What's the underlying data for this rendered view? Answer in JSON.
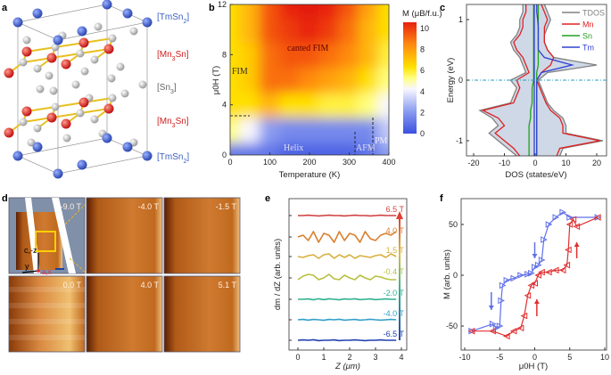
{
  "panel_labels": {
    "a": "a",
    "b": "b",
    "c": "c",
    "d": "d",
    "e": "e",
    "f": "f"
  },
  "panel_a": {
    "layer_labels": [
      {
        "open": "[",
        "elem": "TmSn",
        "sub": "2",
        "close": "]",
        "color": "#3a5fc0"
      },
      {
        "open": "[",
        "elem": "Mn",
        "sub": "3",
        "rest": "Sn",
        "close": "]",
        "color": "#d02020"
      },
      {
        "open": "[",
        "elem": "Sn",
        "sub": "3",
        "close": "]",
        "color": "#666666"
      },
      {
        "open": "[",
        "elem": "Mn",
        "sub": "3",
        "rest": "Sn",
        "close": "]",
        "color": "#d02020"
      },
      {
        "open": "[",
        "elem": "TmSn",
        "sub": "2",
        "close": "]",
        "color": "#3a5fc0"
      }
    ],
    "atom_colors": {
      "Tm": "#3a5fc0",
      "Mn": "#d42020",
      "Sn": "#b8b8b8",
      "bond": "#e8c020"
    }
  },
  "panel_d": {
    "frames": [
      "-9.0 T",
      "-4.0 T",
      "-1.5 T",
      "0.0 T",
      "4.0 T",
      "5.1 T"
    ],
    "axes": {
      "cz": "c,-z",
      "y": "y",
      "ax": "a,x"
    }
  },
  "chart_data": [
    {
      "id": "b",
      "type": "heatmap",
      "xlabel": "Temperature (K)",
      "ylabel": "μ0H (T)",
      "xlim": [
        0,
        400
      ],
      "ylim": [
        0,
        12
      ],
      "xticks": [
        "0",
        "100",
        "200",
        "300",
        "400"
      ],
      "yticks": [
        "0",
        "4",
        "8",
        "12"
      ],
      "colorbar": {
        "label": "M (μB/f.u.)",
        "range": [
          0,
          10
        ],
        "ticks": [
          "0",
          "2",
          "4",
          "6",
          "8",
          "10"
        ]
      },
      "temperatures": [
        0,
        50,
        100,
        150,
        200,
        250,
        300,
        350,
        400
      ],
      "fields": [
        0,
        2,
        4,
        6,
        8,
        10,
        12
      ],
      "values": [
        [
          1,
          1,
          1,
          0.5,
          0.5,
          0.5,
          0.5,
          1,
          2
        ],
        [
          5,
          4,
          2,
          1.5,
          1.5,
          1.5,
          1.5,
          1.5,
          3
        ],
        [
          6,
          6,
          7,
          6,
          6,
          5.5,
          5.5,
          5,
          4
        ],
        [
          6,
          6.5,
          8.5,
          8.5,
          8,
          7.5,
          7,
          6,
          5
        ],
        [
          6,
          6.5,
          8.5,
          9,
          9,
          8.5,
          8,
          7,
          5.5
        ],
        [
          6,
          7,
          9,
          9.5,
          10,
          9.5,
          8.5,
          7,
          6
        ],
        [
          6,
          7,
          9,
          10,
          10.5,
          10,
          9,
          7.5,
          6
        ]
      ],
      "annotations": [
        "canted FIM",
        "FIM",
        "Helix",
        "AFM",
        "PM"
      ]
    },
    {
      "id": "c",
      "type": "line",
      "xlabel": "DOS (states/eV)",
      "ylabel": "Energy (eV)",
      "xlim": [
        -23,
        23
      ],
      "ylim": [
        -1.25,
        1.25
      ],
      "xticks": [
        "-20",
        "-10",
        "0",
        "10",
        "20"
      ],
      "yticks": [
        "-1",
        "0",
        "1"
      ],
      "legend": "top-right",
      "energy": [
        1.25,
        1.125,
        1,
        0.875,
        0.75,
        0.625,
        0.5,
        0.375,
        0.25,
        0.125,
        0,
        -0.125,
        -0.25,
        -0.375,
        -0.5,
        -0.625,
        -0.75,
        -0.875,
        -1,
        -1.125,
        -1.25
      ],
      "series": [
        {
          "name": "TDOS",
          "color": "#808080",
          "up": [
            3,
            4,
            5,
            4,
            3,
            3,
            4,
            6,
            20,
            4,
            1,
            2,
            3,
            4,
            6,
            9,
            10,
            10,
            22,
            9,
            8
          ],
          "down": [
            -4,
            -4,
            -5,
            -5,
            -6,
            -8,
            -7,
            -5,
            -4,
            -3,
            -8,
            -6,
            -7,
            -8,
            -18,
            -14,
            -12,
            -15,
            -12,
            -9,
            -6
          ]
        },
        {
          "name": "Mn",
          "color": "#e02020",
          "up": [
            2,
            3,
            4,
            3,
            3,
            3,
            4,
            6,
            5,
            2,
            0.5,
            1.5,
            2.5,
            3.5,
            5,
            8,
            9,
            9,
            21,
            8,
            7
          ],
          "down": [
            -3,
            -3,
            -4,
            -4,
            -5,
            -7,
            -6,
            -4,
            -3,
            -2,
            -6,
            -5,
            -6,
            -7,
            -17,
            -12,
            -10,
            -13,
            -10,
            -7,
            -5
          ]
        },
        {
          "name": "Sn",
          "color": "#20a020",
          "up": [
            1,
            1,
            1,
            1,
            1,
            1,
            1,
            1,
            1,
            0.5,
            0.5,
            0.5,
            0.5,
            0.5,
            0.5,
            0.5,
            0.5,
            0.5,
            0.5,
            0.5,
            0.5
          ],
          "down": [
            -0.5,
            -0.5,
            -0.5,
            -0.5,
            -0.5,
            -0.5,
            -0.5,
            -0.5,
            -0.5,
            -0.5,
            -0.5,
            -1,
            -1,
            -1,
            -1.5,
            -1.5,
            -2,
            -2,
            -2,
            -2,
            -2
          ]
        },
        {
          "name": "Tm",
          "color": "#3040d0",
          "up": [
            0.5,
            0.5,
            0.8,
            1,
            1,
            1,
            1,
            3,
            12,
            2,
            0.5,
            0.5,
            0.5,
            0.5,
            0.5,
            0.5,
            0.5,
            0.5,
            0.5,
            0.5,
            0.5
          ],
          "down": [
            -0.3,
            -0.3,
            -0.3,
            -0.3,
            -0.3,
            -0.3,
            -0.3,
            -0.3,
            -0.3,
            -0.3,
            -0.3,
            -0.3,
            -0.3,
            -0.3,
            -0.3,
            -0.3,
            -0.3,
            -0.3,
            -0.3,
            -0.3,
            -0.3
          ]
        }
      ],
      "fermi_level": 0
    },
    {
      "id": "e",
      "type": "line",
      "xlabel": "Z (μm)",
      "ylabel": "dm / dZ (arb. units)",
      "xlim": [
        -0.3,
        4.3
      ],
      "xticks": [
        "0",
        "1",
        "2",
        "3",
        "4"
      ],
      "x": [
        0,
        0.2,
        0.4,
        0.6,
        0.8,
        1.0,
        1.2,
        1.4,
        1.6,
        1.8,
        2.0,
        2.2,
        2.4,
        2.6,
        2.8,
        3.0,
        3.2,
        3.4,
        3.6,
        3.8
      ],
      "series": [
        {
          "name": "6.5 T",
          "color": "#d04040",
          "values": [
            0,
            0,
            0.02,
            0,
            -0.02,
            0,
            0.02,
            0,
            0,
            -0.02,
            0,
            0.02,
            0,
            0,
            -0.02,
            0,
            0.02,
            0,
            0,
            0
          ]
        },
        {
          "name": "4.0 T",
          "color": "#d98030",
          "values": [
            0,
            0.1,
            -0.2,
            0.3,
            -0.3,
            0.2,
            0.1,
            -0.3,
            0.3,
            -0.2,
            0.2,
            0.1,
            -0.3,
            0.3,
            -0.1,
            -0.2,
            0.1,
            0.2,
            0.1,
            0.3
          ]
        },
        {
          "name": "1.5 T",
          "color": "#d8b040",
          "values": [
            0,
            -0.05,
            0.05,
            0.1,
            -0.1,
            0.1,
            0.15,
            -0.1,
            0.1,
            -0.05,
            0.1,
            -0.1,
            0.05,
            0,
            -0.05,
            0.05,
            0.1,
            -0.05,
            0.15,
            0
          ]
        },
        {
          "name": "-0.4 T",
          "color": "#b8c040",
          "values": [
            -0.1,
            0.1,
            0.2,
            0.15,
            -0.1,
            0,
            0.2,
            -0.05,
            -0.1,
            0.15,
            0,
            -0.1,
            0.15,
            0,
            -0.1,
            0.1,
            0.05,
            -0.05,
            -0.1,
            -0.1
          ]
        },
        {
          "name": "-2.0 T",
          "color": "#30b090",
          "values": [
            0,
            0,
            0.02,
            -0.03,
            0.03,
            -0.02,
            0.03,
            0,
            -0.03,
            0.02,
            0,
            0.03,
            -0.02,
            0,
            0.02,
            -0.02,
            0,
            0.02,
            0,
            0
          ]
        },
        {
          "name": "-4.0 T",
          "color": "#30a0c8",
          "values": [
            0,
            0.02,
            -0.02,
            0.02,
            0,
            -0.03,
            0.02,
            0,
            0.03,
            -0.02,
            0,
            0.02,
            -0.02,
            0,
            0.03,
            0,
            -0.02,
            0,
            0.02,
            0
          ]
        },
        {
          "name": "-6.5 T",
          "color": "#2040b0",
          "values": [
            0,
            0.02,
            0,
            0.03,
            -0.02,
            0,
            0,
            0.02,
            -0.02,
            0,
            0,
            0.02,
            0,
            -0.02,
            0,
            0,
            0.02,
            0,
            0,
            0
          ]
        }
      ]
    },
    {
      "id": "f",
      "type": "scatter",
      "xlabel": "μ0H (T)",
      "ylabel": "M (arb. units)",
      "xlim": [
        -10,
        10
      ],
      "ylim": [
        -72,
        72
      ],
      "xticks": [
        "-10",
        "-5",
        "0",
        "5",
        "10"
      ],
      "yticks": [
        "-50",
        "0",
        "50"
      ],
      "series": [
        {
          "name": "descending",
          "color": "#6070e8",
          "x": [
            9,
            5,
            4,
            3,
            2,
            1.3,
            1,
            0.5,
            0,
            -0.5,
            -1,
            -2,
            -3,
            -4,
            -4.6,
            -4.8,
            -5,
            -5.5,
            -6,
            -9
          ],
          "y": [
            57,
            57,
            62,
            57,
            50,
            35,
            15,
            10,
            8,
            2,
            1,
            0,
            -3,
            -5,
            -10,
            -25,
            -50,
            -52,
            -48,
            -55
          ]
        },
        {
          "name": "ascending",
          "color": "#e03030",
          "x": [
            -9,
            -6,
            -4,
            -3,
            -2,
            -1.5,
            -1,
            -0.5,
            0,
            0.5,
            1,
            2,
            3,
            4,
            4.6,
            4.8,
            5,
            5.5,
            6,
            9
          ],
          "y": [
            -55,
            -55,
            -60,
            -55,
            -52,
            -40,
            -20,
            -10,
            -8,
            0,
            3,
            3,
            5,
            5,
            10,
            25,
            50,
            55,
            48,
            57
          ]
        }
      ]
    }
  ]
}
